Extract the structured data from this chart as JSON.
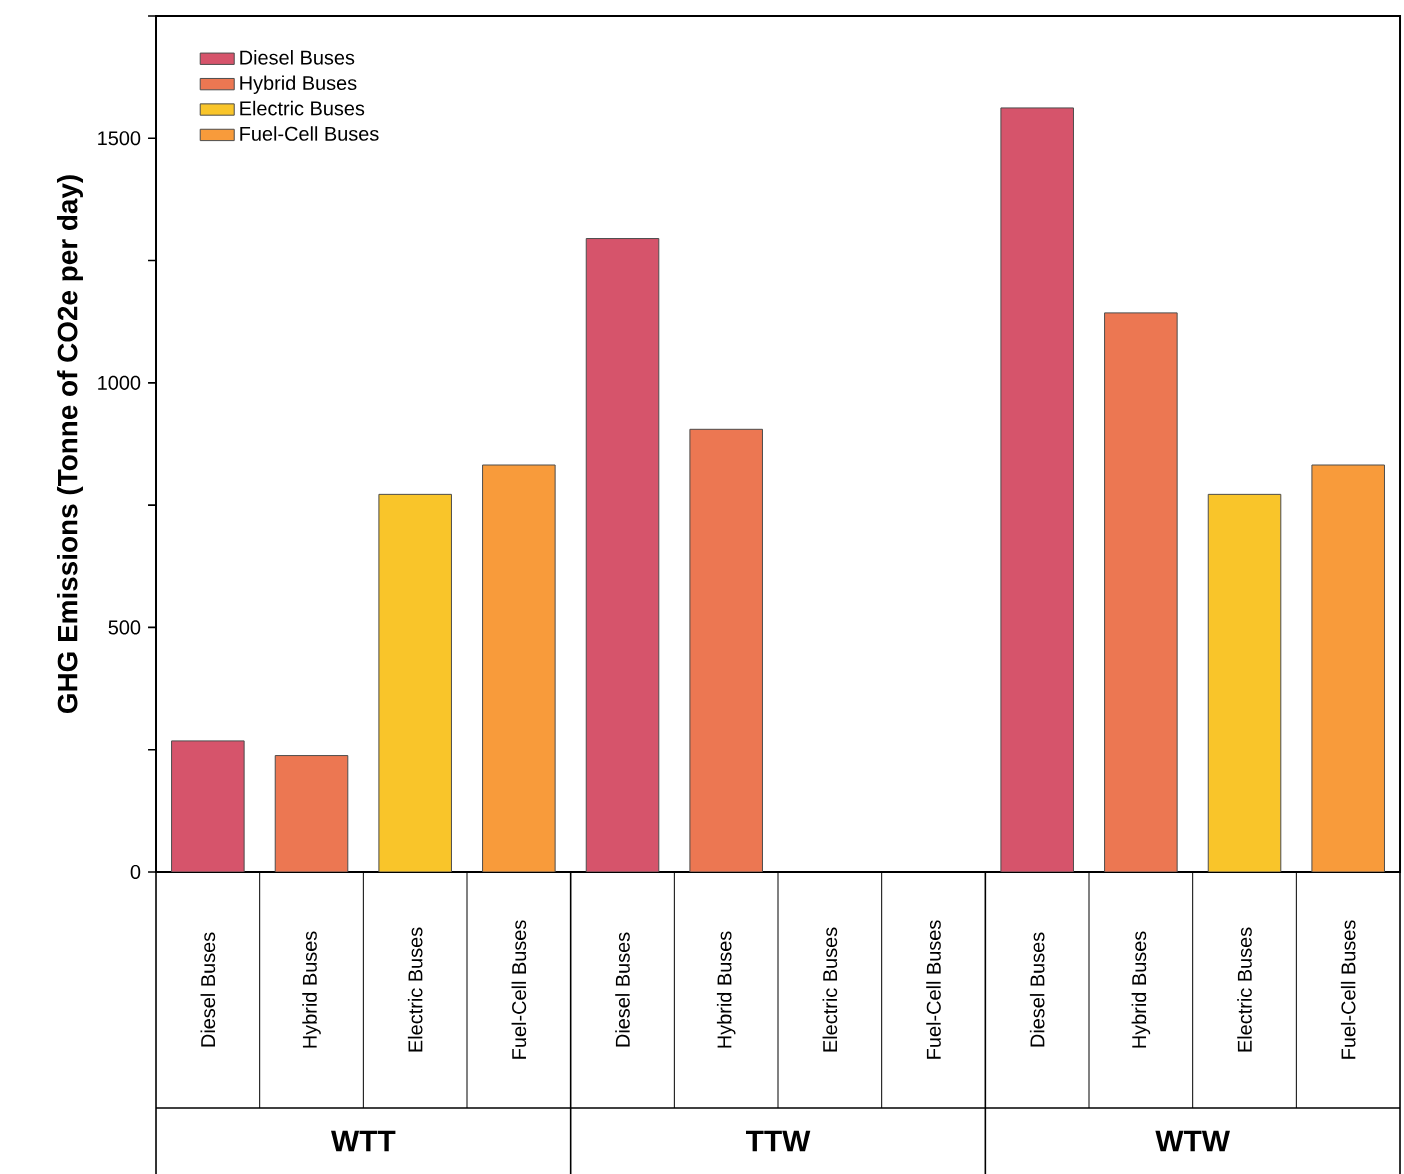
{
  "chart_data": {
    "type": "bar",
    "ylabel": "GHG Emissions (Tonne of CO2e per day)",
    "categories": [
      "Diesel Buses",
      "Hybrid Buses",
      "Electric Buses",
      "Fuel-Cell Buses",
      "Diesel Buses",
      "Hybrid Buses",
      "Electric Buses",
      "Fuel-Cell Buses",
      "Diesel Buses",
      "Hybrid Buses",
      "Electric Buses",
      "Fuel-Cell Buses"
    ],
    "series": [
      {
        "name": "Diesel Buses",
        "color": "#d6546b",
        "values": [
          268,
          null,
          null,
          null,
          1295,
          null,
          null,
          null,
          1562,
          null,
          null,
          null
        ]
      },
      {
        "name": "Hybrid Buses",
        "color": "#ec7752",
        "values": [
          null,
          238,
          null,
          null,
          null,
          905,
          null,
          null,
          null,
          1143,
          null,
          null
        ]
      },
      {
        "name": "Electric Buses",
        "color": "#f9c52a",
        "values": [
          null,
          null,
          772,
          null,
          null,
          null,
          null,
          null,
          null,
          null,
          772,
          null
        ]
      },
      {
        "name": "Fuel-Cell Buses",
        "color": "#f89b3b",
        "values": [
          null,
          null,
          null,
          832,
          null,
          null,
          null,
          null,
          null,
          null,
          null,
          832
        ]
      }
    ],
    "annotations": [
      "WTT",
      "TTW",
      "WTW"
    ],
    "ylim": [
      0,
      1750
    ],
    "yticks": [
      0,
      {
        "value": 250,
        "label": null
      },
      500,
      {
        "value": 750,
        "label": null
      },
      1000,
      {
        "value": 1250,
        "label": null
      },
      1500,
      {
        "value": 1750,
        "label": null
      }
    ],
    "legend": "top left",
    "grid": false
  }
}
